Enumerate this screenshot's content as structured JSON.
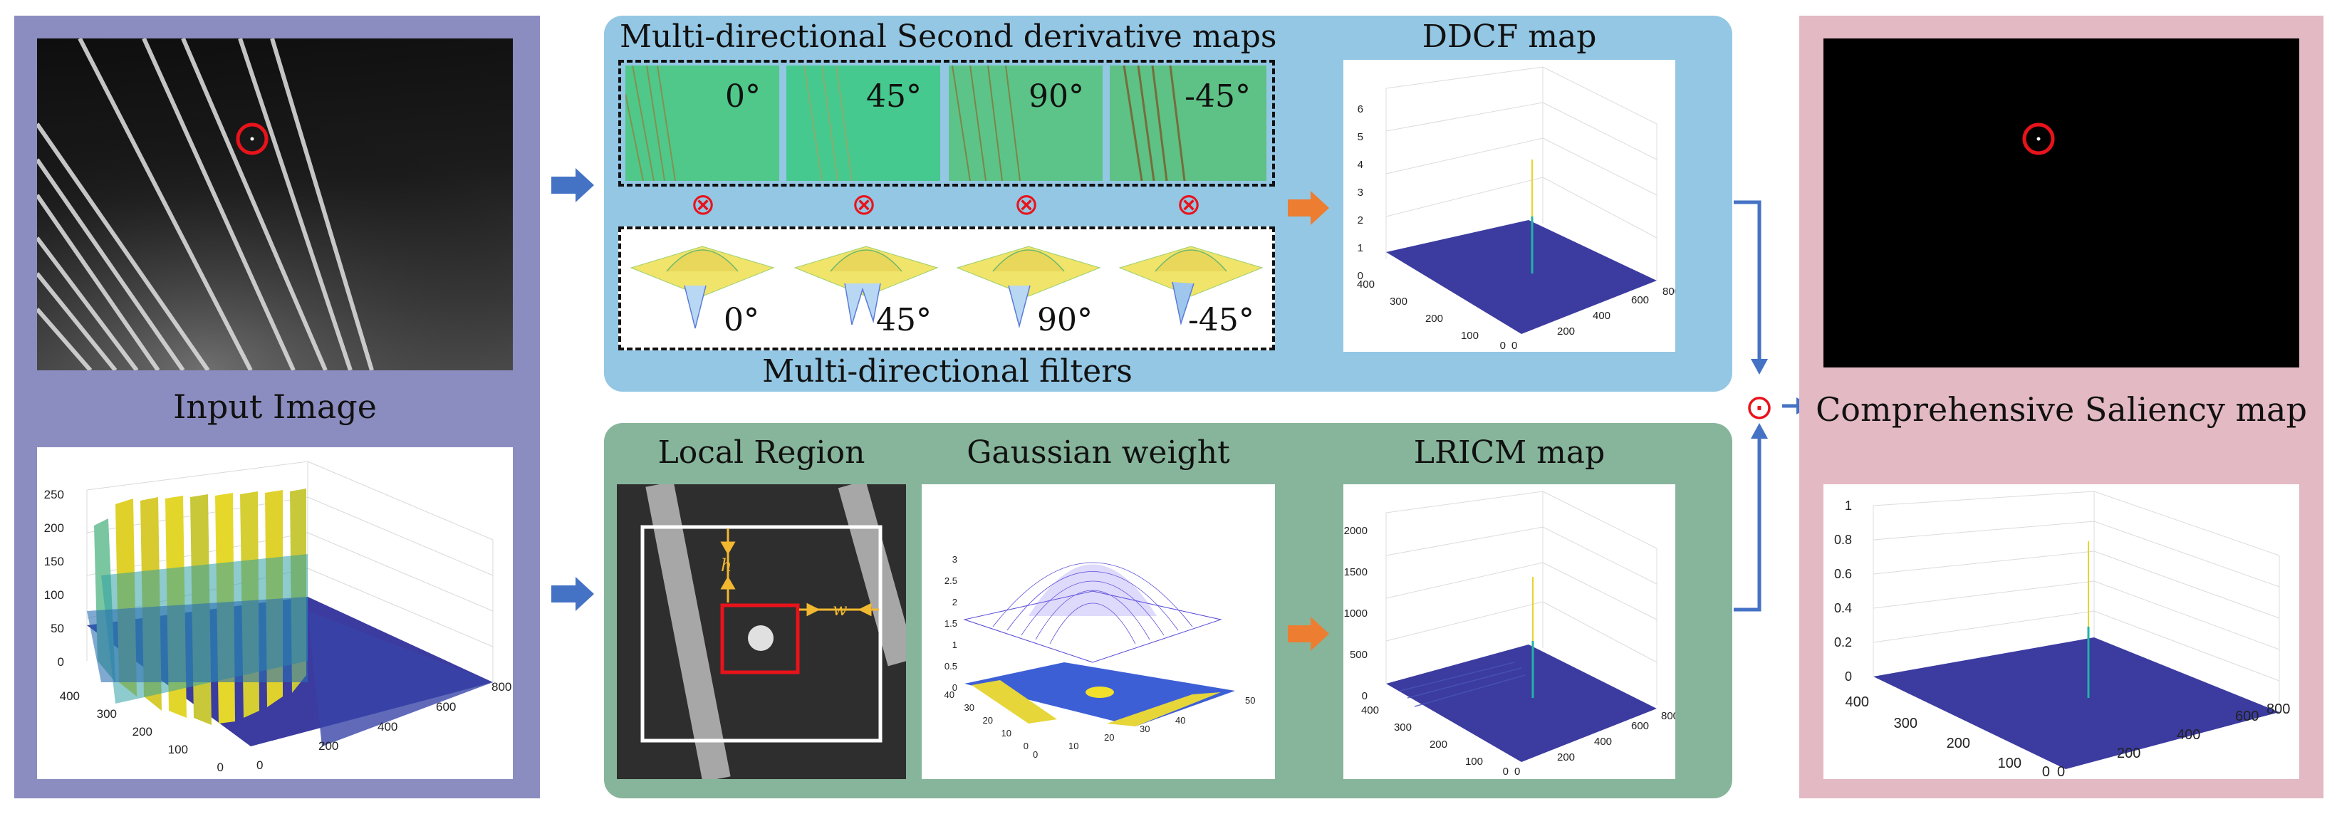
{
  "input_panel": {
    "label": "Input Image",
    "surface_axes": {
      "z_ticks": [
        "250",
        "200",
        "150",
        "100",
        "50",
        "0"
      ],
      "y_ticks": [
        "400",
        "300",
        "200",
        "100",
        "0"
      ],
      "x_ticks": [
        "0",
        "200",
        "400",
        "600",
        "800"
      ]
    }
  },
  "ddcf_panel": {
    "top_label": "Multi-directional Second derivative maps",
    "derivative_angles": [
      "0°",
      "45°",
      "90°",
      "-45°"
    ],
    "multiply_symbol": "⊗",
    "filter_angles": [
      "0°",
      "45°",
      "90°",
      "-45°"
    ],
    "bottom_label": "Multi-directional filters",
    "map_label": "DDCF map",
    "map_axes": {
      "z_ticks": [
        "6",
        "5",
        "4",
        "3",
        "2",
        "1",
        "0"
      ],
      "y_ticks": [
        "400",
        "300",
        "200",
        "100",
        "0"
      ],
      "x_ticks": [
        "0",
        "200",
        "400",
        "600",
        "800"
      ]
    }
  },
  "lricm_panel": {
    "local_label": "Local Region",
    "h_label": "h",
    "w_label": "w",
    "gauss_label": "Gaussian weight",
    "gauss_axes": {
      "z_ticks": [
        "3",
        "2.5",
        "2",
        "1.5",
        "1",
        "0.5",
        "0"
      ],
      "y_ticks": [
        "40",
        "30",
        "20",
        "10",
        "0"
      ],
      "x_ticks": [
        "0",
        "10",
        "20",
        "30",
        "40",
        "50"
      ]
    },
    "map_label": "LRICM map",
    "map_axes": {
      "z_ticks": [
        "2000",
        "1500",
        "1000",
        "500",
        "0"
      ],
      "y_ticks": [
        "400",
        "300",
        "200",
        "100",
        "0"
      ],
      "x_ticks": [
        "0",
        "200",
        "400",
        "600",
        "800"
      ]
    }
  },
  "fusion_symbol": "⊙",
  "output_panel": {
    "label": "Comprehensive Saliency map",
    "map_axes": {
      "z_ticks": [
        "1",
        "0.8",
        "0.6",
        "0.4",
        "0.2",
        "0"
      ],
      "y_ticks": [
        "400",
        "300",
        "200",
        "100",
        "0"
      ],
      "x_ticks": [
        "0",
        "200",
        "400",
        "600",
        "800"
      ]
    }
  },
  "colors": {
    "input_panel_bg": "#8b8dc0",
    "ddcf_panel_bg": "#94c7e4",
    "lricm_panel_bg": "#87b59b",
    "output_panel_bg": "#e3b9c3",
    "arrow_blue": "#4472c4",
    "arrow_orange": "#ed7d31",
    "marker_red": "#e8131b",
    "surface_blue": "#3b3ba0"
  }
}
